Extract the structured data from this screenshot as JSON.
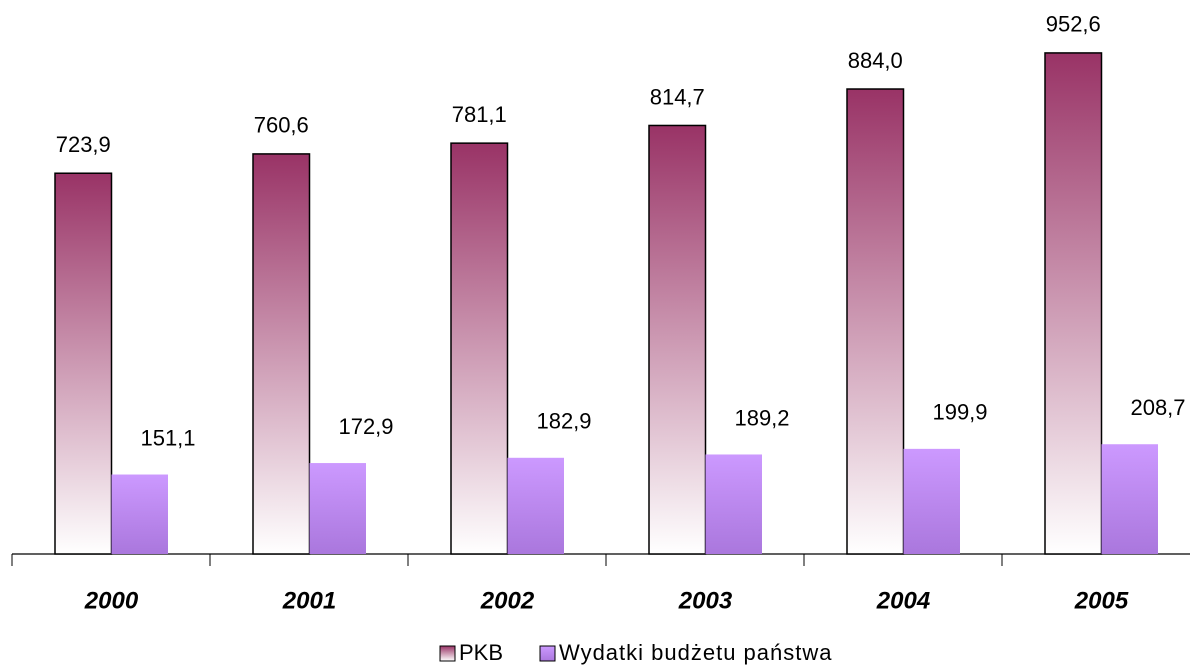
{
  "chart_data": {
    "type": "bar",
    "categories": [
      "2000",
      "2001",
      "2002",
      "2003",
      "2004",
      "2005"
    ],
    "series": [
      {
        "name": "PKB",
        "color": "#993366",
        "values": [
          723.9,
          760.6,
          781.1,
          814.7,
          884.0,
          952.6
        ],
        "value_labels": [
          "723,9",
          "760,6",
          "781,1",
          "814,7",
          "884,0",
          "952,6"
        ]
      },
      {
        "name": "Wydatki budżetu państwa",
        "color": "#cc99ff",
        "values": [
          151.1,
          172.9,
          182.9,
          189.2,
          199.9,
          208.7
        ],
        "value_labels": [
          "151,1",
          "172,9",
          "182,9",
          "189,2",
          "199,9",
          "208,7"
        ]
      }
    ],
    "legend": "bottom"
  }
}
